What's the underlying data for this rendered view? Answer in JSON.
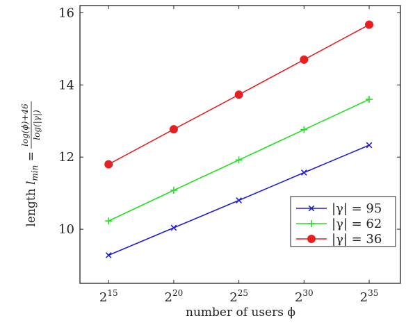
{
  "chart_data": {
    "type": "line",
    "xlabel": "number of users ϕ",
    "ylabel_parts": {
      "prefix": "length ",
      "var": "l",
      "sub": "min",
      "eq": " = ",
      "numerator": "log(ϕ)+46",
      "denominator": "log(|γ|)"
    },
    "x_tick_base": "2",
    "x": [
      15,
      20,
      25,
      30,
      35
    ],
    "x_ticks": [
      "15",
      "20",
      "25",
      "30",
      "35"
    ],
    "y_ticks": [
      "10",
      "12",
      "14",
      "16"
    ],
    "xlim": [
      12.8,
      37.4
    ],
    "ylim": [
      8.5,
      16.2
    ],
    "series": [
      {
        "name": "|γ| = 95",
        "color": "#1f1fd1",
        "marker": "x",
        "values": [
          9.28,
          10.04,
          10.8,
          11.57,
          12.33
        ]
      },
      {
        "name": "|γ| = 62",
        "color": "#22e022",
        "marker": "plus",
        "values": [
          10.23,
          11.08,
          11.92,
          12.76,
          13.6
        ]
      },
      {
        "name": "|γ| = 36",
        "color": "#e62020",
        "marker": "circle",
        "values": [
          11.8,
          12.77,
          13.73,
          14.7,
          15.67
        ]
      }
    ],
    "legend_location": "bottom-right",
    "grid": false
  }
}
